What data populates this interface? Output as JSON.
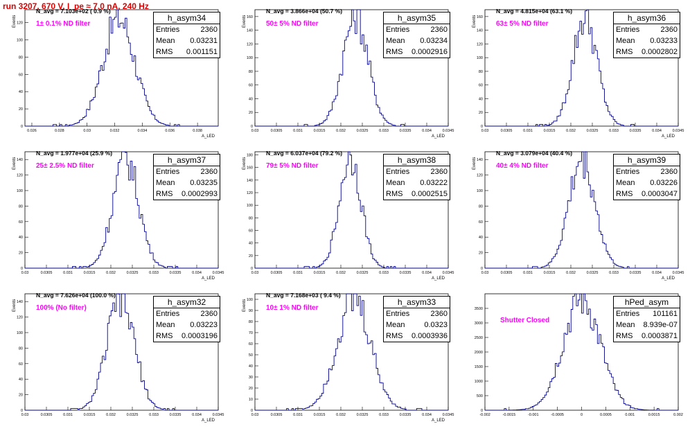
{
  "run_title": "run 3207,   670 V, I_pe ≈ 7.0 nA, 240 Hz",
  "colors": {
    "hist_line": "#00008b",
    "title": "#e00000",
    "filter_label": "#ff00ff"
  },
  "chart_data": [
    {
      "type": "bar",
      "name": "h_asym34",
      "title": "N_avg = 7.103e+02 ( 0.9 %)",
      "label": "1± 0.1% ND filter",
      "xlabel": "A_LED",
      "ylabel": "Events",
      "xlim": [
        0.0255,
        0.0395
      ],
      "ylim": [
        0,
        135
      ],
      "x_ticks": [
        "0.026",
        "0.028",
        "0.03",
        "0.032",
        "0.034",
        "0.036",
        "0.038"
      ],
      "x_tick_values": [
        0.026,
        0.028,
        0.03,
        0.032,
        0.034,
        0.036,
        0.038
      ],
      "y_ticks": [
        "0",
        "20",
        "40",
        "60",
        "80",
        "100",
        "120"
      ],
      "stats": {
        "entries": "2360",
        "mean": "0.03231",
        "rms": "0.001151"
      },
      "mean": 0.03231,
      "rms": 0.001151,
      "peak": 125
    },
    {
      "type": "bar",
      "name": "h_asym35",
      "title": "N_avg = 3.866e+04 (50.7 %)",
      "label": "50± 5% ND filter",
      "xlabel": "A_LED",
      "ylabel": "Events",
      "xlim": [
        0.03,
        0.0345
      ],
      "ylim": [
        0,
        170
      ],
      "x_ticks": [
        "0.03",
        "0.0305",
        "0.031",
        "0.0315",
        "0.032",
        "0.0325",
        "0.033",
        "0.0335",
        "0.034",
        "0.0345"
      ],
      "x_tick_values": [
        0.03,
        0.0305,
        0.031,
        0.0315,
        0.032,
        0.0325,
        0.033,
        0.0335,
        0.034,
        0.0345
      ],
      "y_ticks": [
        "0",
        "20",
        "40",
        "60",
        "80",
        "100",
        "120",
        "140",
        "160"
      ],
      "stats": {
        "entries": "2360",
        "mean": "0.03234",
        "rms": "0.0002916"
      },
      "mean": 0.03234,
      "rms": 0.0002916,
      "peak": 162
    },
    {
      "type": "bar",
      "name": "h_asym36",
      "title": "N_avg = 4.815e+04 (63.1 %)",
      "label": "63± 5% ND filter",
      "xlabel": "A_LED",
      "ylabel": "Events",
      "xlim": [
        0.03,
        0.0345
      ],
      "ylim": [
        0,
        170
      ],
      "x_ticks": [
        "0.03",
        "0.0305",
        "0.031",
        "0.0315",
        "0.032",
        "0.0325",
        "0.033",
        "0.0335",
        "0.034",
        "0.0345"
      ],
      "x_tick_values": [
        0.03,
        0.0305,
        0.031,
        0.0315,
        0.032,
        0.0325,
        0.033,
        0.0335,
        0.034,
        0.0345
      ],
      "y_ticks": [
        "0",
        "20",
        "40",
        "60",
        "80",
        "100",
        "120",
        "140",
        "160"
      ],
      "stats": {
        "entries": "2360",
        "mean": "0.03233",
        "rms": "0.0002802"
      },
      "mean": 0.03233,
      "rms": 0.0002802,
      "peak": 160
    },
    {
      "type": "bar",
      "name": "h_asym37",
      "title": "N_avg = 1.977e+04 (25.9 %)",
      "label": "25± 2.5% ND filter",
      "xlabel": "A_LED",
      "ylabel": "Events",
      "xlim": [
        0.03,
        0.0345
      ],
      "ylim": [
        0,
        150
      ],
      "x_ticks": [
        "0.03",
        "0.0305",
        "0.031",
        "0.0315",
        "0.032",
        "0.0325",
        "0.033",
        "0.0335",
        "0.034",
        "0.0345"
      ],
      "x_tick_values": [
        0.03,
        0.0305,
        0.031,
        0.0315,
        0.032,
        0.0325,
        0.033,
        0.0335,
        0.034,
        0.0345
      ],
      "y_ticks": [
        "0",
        "20",
        "40",
        "60",
        "80",
        "100",
        "120",
        "140"
      ],
      "stats": {
        "entries": "2360",
        "mean": "0.03235",
        "rms": "0.0002993"
      },
      "mean": 0.03235,
      "rms": 0.0002993,
      "peak": 142
    },
    {
      "type": "bar",
      "name": "h_asym38",
      "title": "N_avg = 6.037e+04 (79.2 %)",
      "label": "79± 5% ND filter",
      "xlabel": "A_LED",
      "ylabel": "Events",
      "xlim": [
        0.03,
        0.0345
      ],
      "ylim": [
        0,
        185
      ],
      "x_ticks": [
        "0.03",
        "0.0305",
        "0.031",
        "0.0315",
        "0.032",
        "0.0325",
        "0.033",
        "0.0335",
        "0.034",
        "0.0345"
      ],
      "x_tick_values": [
        0.03,
        0.0305,
        0.031,
        0.0315,
        0.032,
        0.0325,
        0.033,
        0.0335,
        0.034,
        0.0345
      ],
      "y_ticks": [
        "0",
        "20",
        "40",
        "60",
        "80",
        "100",
        "120",
        "140",
        "160",
        "180"
      ],
      "stats": {
        "entries": "2360",
        "mean": "0.03222",
        "rms": "0.0002515"
      },
      "mean": 0.03222,
      "rms": 0.0002515,
      "peak": 180
    },
    {
      "type": "bar",
      "name": "h_asym39",
      "title": "N_avg = 3.079e+04 (40.4 %)",
      "label": "40± 4% ND filter",
      "xlabel": "A_LED",
      "ylabel": "Events",
      "xlim": [
        0.03,
        0.0345
      ],
      "ylim": [
        0,
        150
      ],
      "x_ticks": [
        "0.03",
        "0.0305",
        "0.031",
        "0.0315",
        "0.032",
        "0.0325",
        "0.033",
        "0.0335",
        "0.034",
        "0.0345"
      ],
      "x_tick_values": [
        0.03,
        0.0305,
        0.031,
        0.0315,
        0.032,
        0.0325,
        0.033,
        0.0335,
        0.034,
        0.0345
      ],
      "y_ticks": [
        "0",
        "20",
        "40",
        "60",
        "80",
        "100",
        "120",
        "140"
      ],
      "stats": {
        "entries": "2360",
        "mean": "0.03226",
        "rms": "0.0003047"
      },
      "mean": 0.03226,
      "rms": 0.0003047,
      "peak": 140
    },
    {
      "type": "bar",
      "name": "h_asym32",
      "title": "N_avg = 7.626e+04 (100.0 %)",
      "label": "100% (No filter)",
      "xlabel": "A_LED",
      "ylabel": "Events",
      "xlim": [
        0.03,
        0.0345
      ],
      "ylim": [
        0,
        150
      ],
      "x_ticks": [
        "0.03",
        "0.0305",
        "0.031",
        "0.0315",
        "0.032",
        "0.0325",
        "0.033",
        "0.0335",
        "0.034",
        "0.0345"
      ],
      "x_tick_values": [
        0.03,
        0.0305,
        0.031,
        0.0315,
        0.032,
        0.0325,
        0.033,
        0.0335,
        0.034,
        0.0345
      ],
      "y_ticks": [
        "0",
        "20",
        "40",
        "60",
        "80",
        "100",
        "120",
        "140"
      ],
      "stats": {
        "entries": "2360",
        "mean": "0.03223",
        "rms": "0.0003196"
      },
      "mean": 0.03223,
      "rms": 0.0003196,
      "peak": 143
    },
    {
      "type": "bar",
      "name": "h_asym33",
      "title": "N_avg = 7.168e+03 ( 9.4 %)",
      "label": "10± 1% ND filter",
      "xlabel": "A_LED",
      "ylabel": "Events",
      "xlim": [
        0.03,
        0.0345
      ],
      "ylim": [
        0,
        105
      ],
      "x_ticks": [
        "0.03",
        "0.0305",
        "0.031",
        "0.0315",
        "0.032",
        "0.0325",
        "0.033",
        "0.0335",
        "0.034",
        "0.0345"
      ],
      "x_tick_values": [
        0.03,
        0.0305,
        0.031,
        0.0315,
        0.032,
        0.0325,
        0.033,
        0.0335,
        0.034,
        0.0345
      ],
      "y_ticks": [
        "0",
        "10",
        "20",
        "30",
        "40",
        "50",
        "60",
        "70",
        "80",
        "90",
        "100"
      ],
      "stats": {
        "entries": "2360",
        "mean": "0.0323",
        "rms": "0.0003936"
      },
      "mean": 0.0323,
      "rms": 0.0003936,
      "peak": 100
    },
    {
      "type": "bar",
      "name": "hPed_asym",
      "title": "",
      "label": "Shutter Closed",
      "xlabel": "",
      "ylabel": "",
      "xlim": [
        -0.002,
        0.002
      ],
      "ylim": [
        0,
        4000
      ],
      "x_ticks": [
        "-0.002",
        "-0.0015",
        "-0.001",
        "-0.0005",
        "0",
        "0.0005",
        "0.001",
        "0.0015",
        "0.002"
      ],
      "x_tick_values": [
        -0.002,
        -0.0015,
        -0.001,
        -0.0005,
        0,
        0.0005,
        0.001,
        0.0015,
        0.002
      ],
      "y_ticks": [
        "0",
        "500",
        "1000",
        "1500",
        "2000",
        "2500",
        "3000",
        "3500"
      ],
      "stats": {
        "entries": "101161",
        "mean": "8.939e-07",
        "rms": "0.0003871"
      },
      "mean": 8.94e-07,
      "rms": 0.0003871,
      "peak": 3800
    }
  ]
}
